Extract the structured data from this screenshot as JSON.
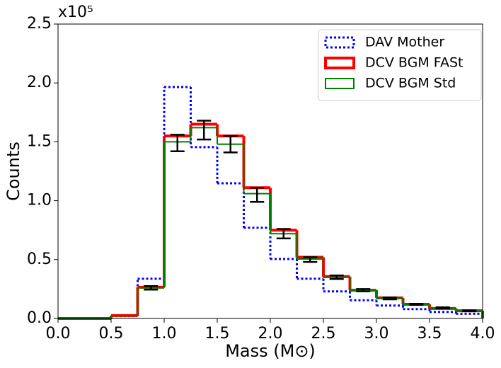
{
  "chart_data": {
    "type": "histogram",
    "xlabel": "Mass (M⊙)",
    "ylabel": "Counts",
    "y_offset_label": "x10⁵",
    "bins": [
      0,
      0.25,
      0.5,
      0.75,
      1.0,
      1.25,
      1.5,
      1.75,
      2.0,
      2.25,
      2.5,
      2.75,
      3.0,
      3.25,
      3.5,
      3.75,
      4.0
    ],
    "series": [
      {
        "name": "DAV Mother",
        "color": "#0000ff",
        "style": "dotted",
        "width": 3,
        "values": [
          0,
          0,
          0.02,
          0.337,
          1.965,
          1.455,
          1.148,
          0.77,
          0.505,
          0.337,
          0.23,
          0.155,
          0.11,
          0.08,
          0.055,
          0.04
        ]
      },
      {
        "name": "DCV BGM FASt",
        "color": "#ff0000",
        "style": "solid",
        "width": 4,
        "values": [
          0,
          0,
          0.025,
          0.265,
          1.55,
          1.65,
          1.55,
          1.11,
          0.75,
          0.52,
          0.355,
          0.24,
          0.175,
          0.12,
          0.085,
          0.065
        ]
      },
      {
        "name": "DCV BGM Std",
        "color": "#008000",
        "style": "solid",
        "width": 2,
        "values": [
          0,
          0,
          0.025,
          0.26,
          1.5,
          1.62,
          1.48,
          1.06,
          0.72,
          0.505,
          0.35,
          0.24,
          0.17,
          0.12,
          0.085,
          0.065
        ]
      }
    ],
    "errorbars": {
      "color": "#000000",
      "values": [
        null,
        null,
        null,
        0.26,
        1.49,
        1.6,
        1.48,
        1.05,
        0.72,
        0.5,
        0.35,
        0.24,
        0.17,
        0.12,
        0.09,
        0.065
      ],
      "errors": [
        null,
        null,
        null,
        0.015,
        0.07,
        0.08,
        0.07,
        0.06,
        0.04,
        0.02,
        0.015,
        0.01,
        0.008,
        0.005,
        0.005,
        0.004
      ]
    },
    "xlim": [
      0,
      4.0
    ],
    "ylim": [
      0,
      2.5
    ],
    "xticks": [
      {
        "value": 0,
        "label": "0.0"
      },
      {
        "value": 0.5,
        "label": "0.5"
      },
      {
        "value": 1.0,
        "label": "1.0"
      },
      {
        "value": 1.5,
        "label": "1.5"
      },
      {
        "value": 2.0,
        "label": "2.0"
      },
      {
        "value": 2.5,
        "label": "2.5"
      },
      {
        "value": 3.0,
        "label": "3.0"
      },
      {
        "value": 3.5,
        "label": "3.5"
      },
      {
        "value": 4.0,
        "label": "4.0"
      }
    ],
    "yticks": [
      {
        "value": 0,
        "label": "0.0"
      },
      {
        "value": 0.5,
        "label": "0.5"
      },
      {
        "value": 1.0,
        "label": "1.0"
      },
      {
        "value": 1.5,
        "label": "1.5"
      },
      {
        "value": 2.0,
        "label": "2.0"
      },
      {
        "value": 2.5,
        "label": "2.5"
      }
    ],
    "grid": false,
    "legend": "upper right"
  }
}
